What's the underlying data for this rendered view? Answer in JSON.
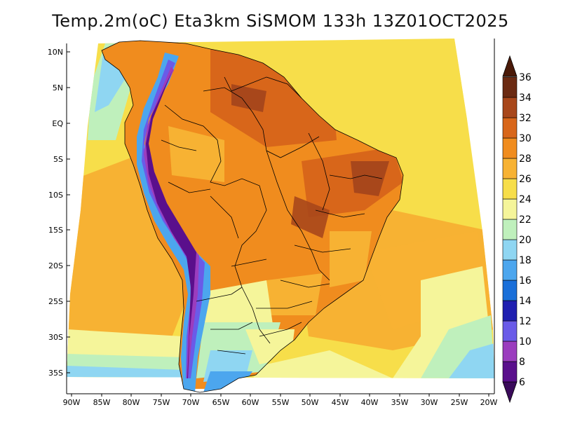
{
  "title": "Temp.2m(oC) Eta3km SiSMOM 133h 13Z01OCT2025",
  "map": {
    "variable": "Temp.2m",
    "units": "oC",
    "model": "Eta3km",
    "latitude_labels": [
      "10N",
      "5N",
      "EQ",
      "5S",
      "10S",
      "15S",
      "20S",
      "25S",
      "30S",
      "35S"
    ],
    "longitude_labels": [
      "90W",
      "85W",
      "80W",
      "75W",
      "70W",
      "65W",
      "60W",
      "55W",
      "50W",
      "45W",
      "40W",
      "35W",
      "30W",
      "25W",
      "20W"
    ]
  },
  "colorbar": {
    "levels": [
      "6",
      "8",
      "10",
      "12",
      "14",
      "16",
      "18",
      "20",
      "22",
      "24",
      "26",
      "28",
      "30",
      "32",
      "34",
      "36"
    ],
    "colors": [
      "#5a0f8c",
      "#9b3dbe",
      "#6a5be8",
      "#1f1fb0",
      "#1a6fd9",
      "#4ca6ee",
      "#8fd6f2",
      "#bff0bc",
      "#f5f59a",
      "#f7de4a",
      "#f7b233",
      "#f08c1e",
      "#d8661a",
      "#a8471b",
      "#6b2a12"
    ],
    "low_arrow_color": "#3a0a5a",
    "high_arrow_color": "#4a1a08"
  },
  "colors": {
    "ocean_warm": "#f7b233",
    "ocean_mild": "#f7de4a",
    "land_hot": "#f08c1e",
    "andes_cold": "#5a0f8c"
  }
}
